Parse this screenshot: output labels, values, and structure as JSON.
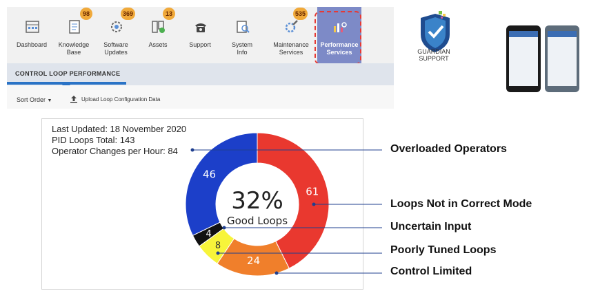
{
  "toolbar": {
    "items": [
      {
        "label": "Dashboard",
        "badge": ""
      },
      {
        "label": "Knowledge\nBase",
        "badge": "98"
      },
      {
        "label": "Software\nUpdates",
        "badge": "369"
      },
      {
        "label": "Assets",
        "badge": "13"
      },
      {
        "label": "Support",
        "badge": ""
      },
      {
        "label": "System\nInfo",
        "badge": ""
      },
      {
        "label": "Maintenance\nServices",
        "badge": "535"
      },
      {
        "label": "Performance\nServices",
        "badge": ""
      }
    ],
    "active_index": 7
  },
  "subnav": {
    "title": "CONTROL LOOP PERFORMANCE",
    "sort_label": "Sort Order",
    "upload_label": "Upload Loop Configuration Data"
  },
  "brand": {
    "name": "GUARDIAN",
    "tag": "SUPPORT"
  },
  "info": {
    "last_updated": "Last Updated: 18 November 2020",
    "pid_total": "PID Loops Total: 143",
    "changes": "Operator Changes per Hour: 84"
  },
  "chart_data": {
    "type": "pie",
    "center_value": "32%",
    "center_label": "Good Loops",
    "slices": [
      {
        "name": "Loops Not in Correct Mode",
        "value": 61,
        "color": "#e9382f"
      },
      {
        "name": "Control Limited",
        "value": 24,
        "color": "#f07f2b"
      },
      {
        "name": "Poorly Tuned Loops",
        "value": 8,
        "color": "#f7f43a"
      },
      {
        "name": "Uncertain Input",
        "value": 4,
        "color": "#111111"
      },
      {
        "name": "Overloaded Operators",
        "value": 46,
        "color": "#1c3fc9"
      }
    ]
  },
  "callouts": {
    "overloaded": "Overloaded Operators",
    "not_correct": "Loops Not in Correct Mode",
    "uncertain": "Uncertain Input",
    "poorly_tuned": "Poorly Tuned Loops",
    "control_limited": "Control Limited"
  }
}
